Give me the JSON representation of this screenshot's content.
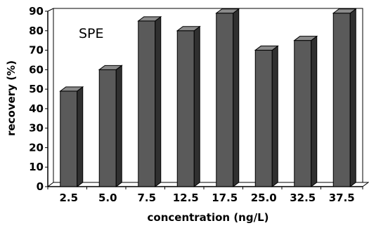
{
  "chart_data": {
    "type": "bar",
    "categories": [
      "2.5",
      "5.0",
      "7.5",
      "12.5",
      "17.5",
      "25.0",
      "32.5",
      "37.5"
    ],
    "values": [
      49,
      60,
      85,
      80,
      89,
      70,
      75,
      89
    ],
    "title": "",
    "xlabel": "concentration (ng/L)",
    "ylabel": "recovery (%)",
    "ylim": [
      0,
      90
    ],
    "yticks": [
      "0",
      "10",
      "20",
      "30",
      "40",
      "50",
      "60",
      "70",
      "80",
      "90"
    ],
    "annotation": "SPE",
    "grid": false,
    "bar_color": "#5a5a5a",
    "bar_side_color": "#303030",
    "bar_top_color": "#8a8a8a"
  }
}
